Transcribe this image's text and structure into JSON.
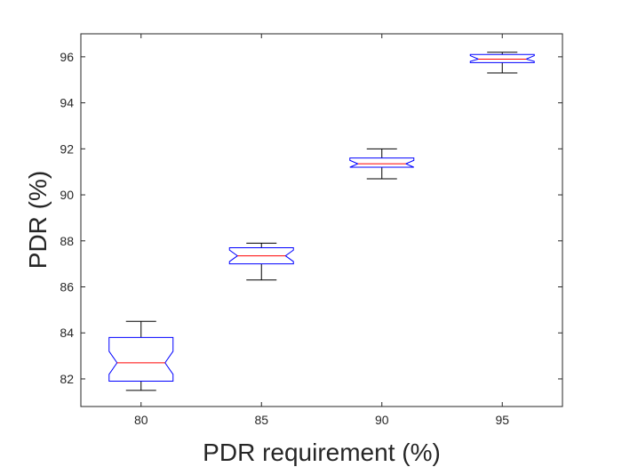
{
  "chart_data": {
    "type": "boxplot",
    "xlabel": "PDR requirement (%)",
    "ylabel": "PDR (%)",
    "categories": [
      "80",
      "85",
      "90",
      "95"
    ],
    "ylim": [
      80.8,
      97
    ],
    "yticks": [
      "82",
      "84",
      "86",
      "88",
      "90",
      "92",
      "94",
      "96"
    ],
    "notched": true,
    "grid": false,
    "boxes": [
      {
        "category": "80",
        "whisker_low": 81.5,
        "q1": 81.9,
        "median": 82.7,
        "q3": 83.8,
        "whisker_high": 84.5,
        "notch_low": 82.2,
        "notch_high": 83.2
      },
      {
        "category": "85",
        "whisker_low": 86.3,
        "q1": 87.0,
        "median": 87.35,
        "q3": 87.7,
        "whisker_high": 87.9,
        "notch_low": 87.1,
        "notch_high": 87.6
      },
      {
        "category": "90",
        "whisker_low": 90.7,
        "q1": 91.2,
        "median": 91.35,
        "q3": 91.6,
        "whisker_high": 92.0,
        "notch_low": 91.2,
        "notch_high": 91.5
      },
      {
        "category": "95",
        "whisker_low": 95.3,
        "q1": 95.75,
        "median": 95.9,
        "q3": 96.1,
        "whisker_high": 96.2,
        "notch_low": 95.8,
        "notch_high": 96.05
      }
    ],
    "colors": {
      "box": "#0000ff",
      "median": "#ff0000",
      "whisker": "#000000",
      "axes": "#262626"
    }
  }
}
